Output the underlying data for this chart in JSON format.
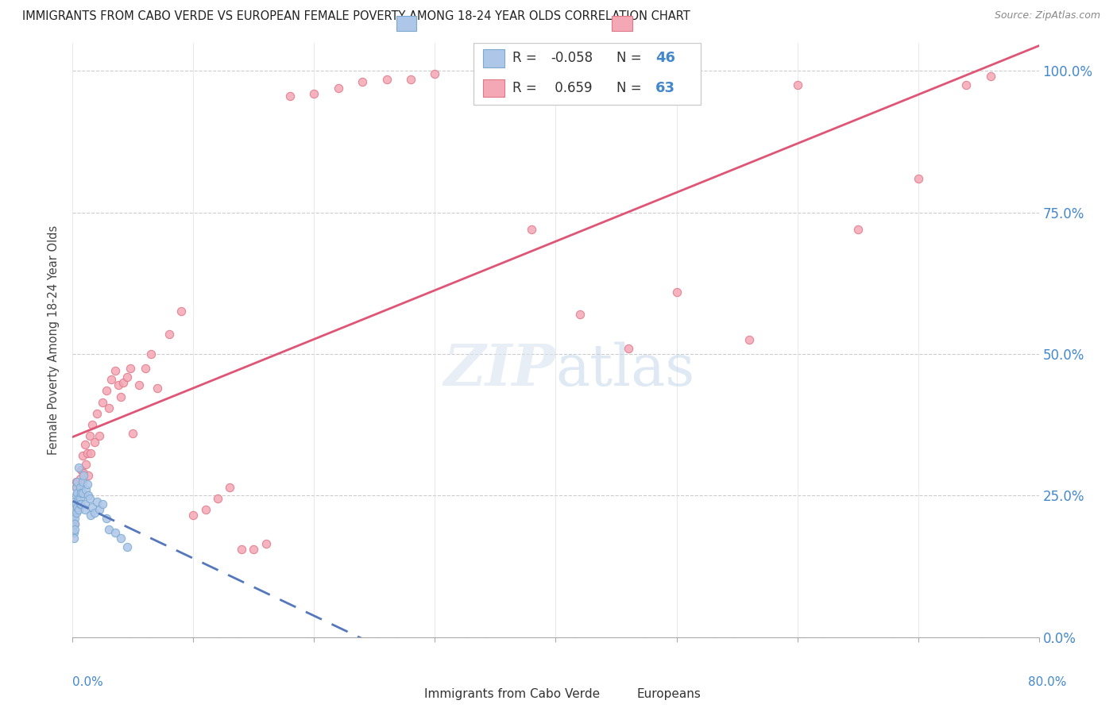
{
  "title": "IMMIGRANTS FROM CABO VERDE VS EUROPEAN FEMALE POVERTY AMONG 18-24 YEAR OLDS CORRELATION CHART",
  "source": "Source: ZipAtlas.com",
  "ylabel": "Female Poverty Among 18-24 Year Olds",
  "legend1_label": "Immigrants from Cabo Verde",
  "legend2_label": "Europeans",
  "r1": "-0.058",
  "n1": "46",
  "r2": "0.659",
  "n2": "63",
  "cabo_color": "#aec6e8",
  "cabo_edge": "#7aaad0",
  "euro_color": "#f4a7b5",
  "euro_edge": "#e07888",
  "trend_cabo_color": "#5577bb",
  "trend_euro_color": "#e05575",
  "xmin": 0.0,
  "xmax": 0.8,
  "ymin": 0.0,
  "ymax": 1.05,
  "cabo_x": [
    0.0,
    0.0,
    0.001,
    0.001,
    0.001,
    0.001,
    0.002,
    0.002,
    0.002,
    0.002,
    0.002,
    0.003,
    0.003,
    0.003,
    0.003,
    0.004,
    0.004,
    0.004,
    0.005,
    0.005,
    0.005,
    0.006,
    0.006,
    0.006,
    0.007,
    0.007,
    0.008,
    0.008,
    0.009,
    0.01,
    0.01,
    0.011,
    0.012,
    0.013,
    0.014,
    0.015,
    0.016,
    0.018,
    0.02,
    0.022,
    0.025,
    0.028,
    0.03,
    0.035,
    0.04,
    0.045
  ],
  "cabo_y": [
    0.205,
    0.195,
    0.22,
    0.215,
    0.185,
    0.175,
    0.24,
    0.225,
    0.21,
    0.2,
    0.19,
    0.235,
    0.265,
    0.25,
    0.22,
    0.275,
    0.255,
    0.23,
    0.3,
    0.245,
    0.225,
    0.265,
    0.245,
    0.235,
    0.255,
    0.235,
    0.275,
    0.255,
    0.285,
    0.235,
    0.225,
    0.26,
    0.27,
    0.25,
    0.245,
    0.215,
    0.23,
    0.22,
    0.24,
    0.225,
    0.235,
    0.21,
    0.19,
    0.185,
    0.175,
    0.16
  ],
  "euro_x": [
    0.0,
    0.001,
    0.002,
    0.003,
    0.003,
    0.004,
    0.005,
    0.006,
    0.007,
    0.008,
    0.009,
    0.01,
    0.011,
    0.012,
    0.013,
    0.014,
    0.015,
    0.016,
    0.018,
    0.02,
    0.022,
    0.025,
    0.028,
    0.03,
    0.032,
    0.035,
    0.038,
    0.04,
    0.042,
    0.045,
    0.048,
    0.05,
    0.055,
    0.06,
    0.065,
    0.07,
    0.08,
    0.09,
    0.1,
    0.11,
    0.12,
    0.13,
    0.14,
    0.15,
    0.16,
    0.18,
    0.2,
    0.22,
    0.24,
    0.26,
    0.28,
    0.3,
    0.34,
    0.38,
    0.42,
    0.46,
    0.5,
    0.56,
    0.6,
    0.65,
    0.7,
    0.74,
    0.76
  ],
  "euro_y": [
    0.22,
    0.215,
    0.2,
    0.265,
    0.275,
    0.23,
    0.255,
    0.28,
    0.295,
    0.32,
    0.29,
    0.34,
    0.305,
    0.325,
    0.285,
    0.355,
    0.325,
    0.375,
    0.345,
    0.395,
    0.355,
    0.415,
    0.435,
    0.405,
    0.455,
    0.47,
    0.445,
    0.425,
    0.45,
    0.46,
    0.475,
    0.36,
    0.445,
    0.475,
    0.5,
    0.44,
    0.535,
    0.575,
    0.215,
    0.225,
    0.245,
    0.265,
    0.155,
    0.155,
    0.165,
    0.955,
    0.96,
    0.97,
    0.98,
    0.985,
    0.985,
    0.995,
    1.0,
    0.72,
    0.57,
    0.51,
    0.61,
    0.525,
    0.975,
    0.72,
    0.81,
    0.975,
    0.99
  ]
}
